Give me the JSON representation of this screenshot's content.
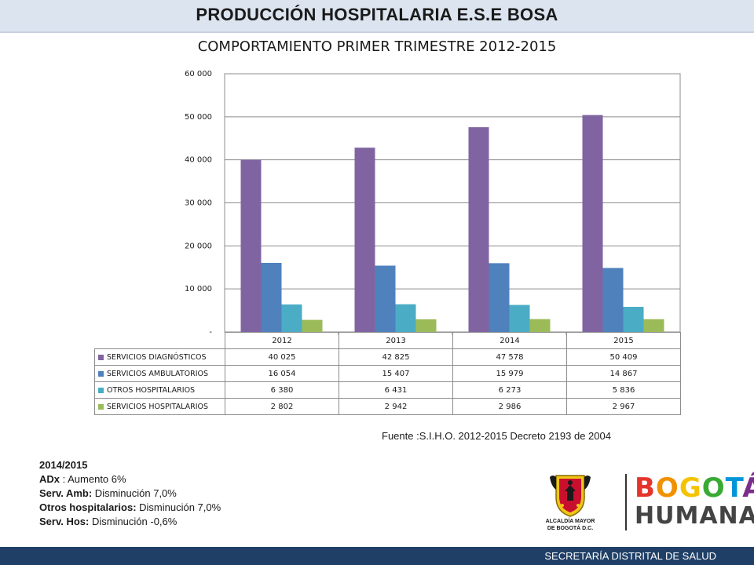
{
  "header": {
    "title": "PRODUCCIÓN HOSPITALARIA E.S.E BOSA"
  },
  "chart_data": {
    "type": "bar",
    "title": "COMPORTAMIENTO PRIMER TRIMESTRE 2012-2015",
    "categories": [
      "2012",
      "2013",
      "2014",
      "2015"
    ],
    "ylim": [
      0,
      60000
    ],
    "y_ticks": [
      "-",
      "10 000",
      "20 000",
      "30 000",
      "40 000",
      "50 000",
      "60 000"
    ],
    "grid": true,
    "legend": "data-table",
    "series": [
      {
        "name": "SERVICIOS DIAGNÓSTICOS",
        "color": "#8064a2",
        "values": [
          40025,
          42825,
          47578,
          50409
        ],
        "labels": [
          "40 025",
          "42 825",
          "47 578",
          "50 409"
        ]
      },
      {
        "name": "SERVICIOS AMBULATORIOS",
        "color": "#4f81bd",
        "values": [
          16054,
          15407,
          15979,
          14867
        ],
        "labels": [
          "16 054",
          "15 407",
          "15 979",
          "14 867"
        ]
      },
      {
        "name": "OTROS HOSPITALARIOS",
        "color": "#4bacc6",
        "values": [
          6380,
          6431,
          6273,
          5836
        ],
        "labels": [
          "6 380",
          "6 431",
          "6 273",
          "5 836"
        ]
      },
      {
        "name": "SERVICIOS HOSPITALARIOS",
        "color": "#9bbb59",
        "values": [
          2802,
          2942,
          2986,
          2967
        ],
        "labels": [
          "2 802",
          "2 942",
          "2 986",
          "2 967"
        ]
      }
    ]
  },
  "source": "Fuente :S.I.H.O. 2012-2015  Decreto 2193 de 2004",
  "notes": {
    "period": "2014/2015",
    "items": [
      {
        "label": "ADx",
        "text": " : Aumento 6%"
      },
      {
        "label": "Serv. Amb:",
        "text": " Disminución  7,0%"
      },
      {
        "label": "Otros hospitalarios:",
        "text": " Disminución 7,0%"
      },
      {
        "label": "Serv. Hos:",
        "text": " Disminución -0,6%"
      }
    ]
  },
  "logos": {
    "alcaldia_line1": "ALCALDÍA MAYOR",
    "alcaldia_line2": "DE BOGOTÁ D.C.",
    "bogota_letters": [
      "B",
      "O",
      "G",
      "O",
      "T",
      "Á"
    ],
    "bogota_colors": [
      "#e4342c",
      "#f29100",
      "#f5c200",
      "#3aaa35",
      "#0095d9",
      "#7a2e8c"
    ],
    "humana": "HUMANA"
  },
  "footer": {
    "text": "SECRETARÍA DISTRITAL DE SALUD"
  }
}
